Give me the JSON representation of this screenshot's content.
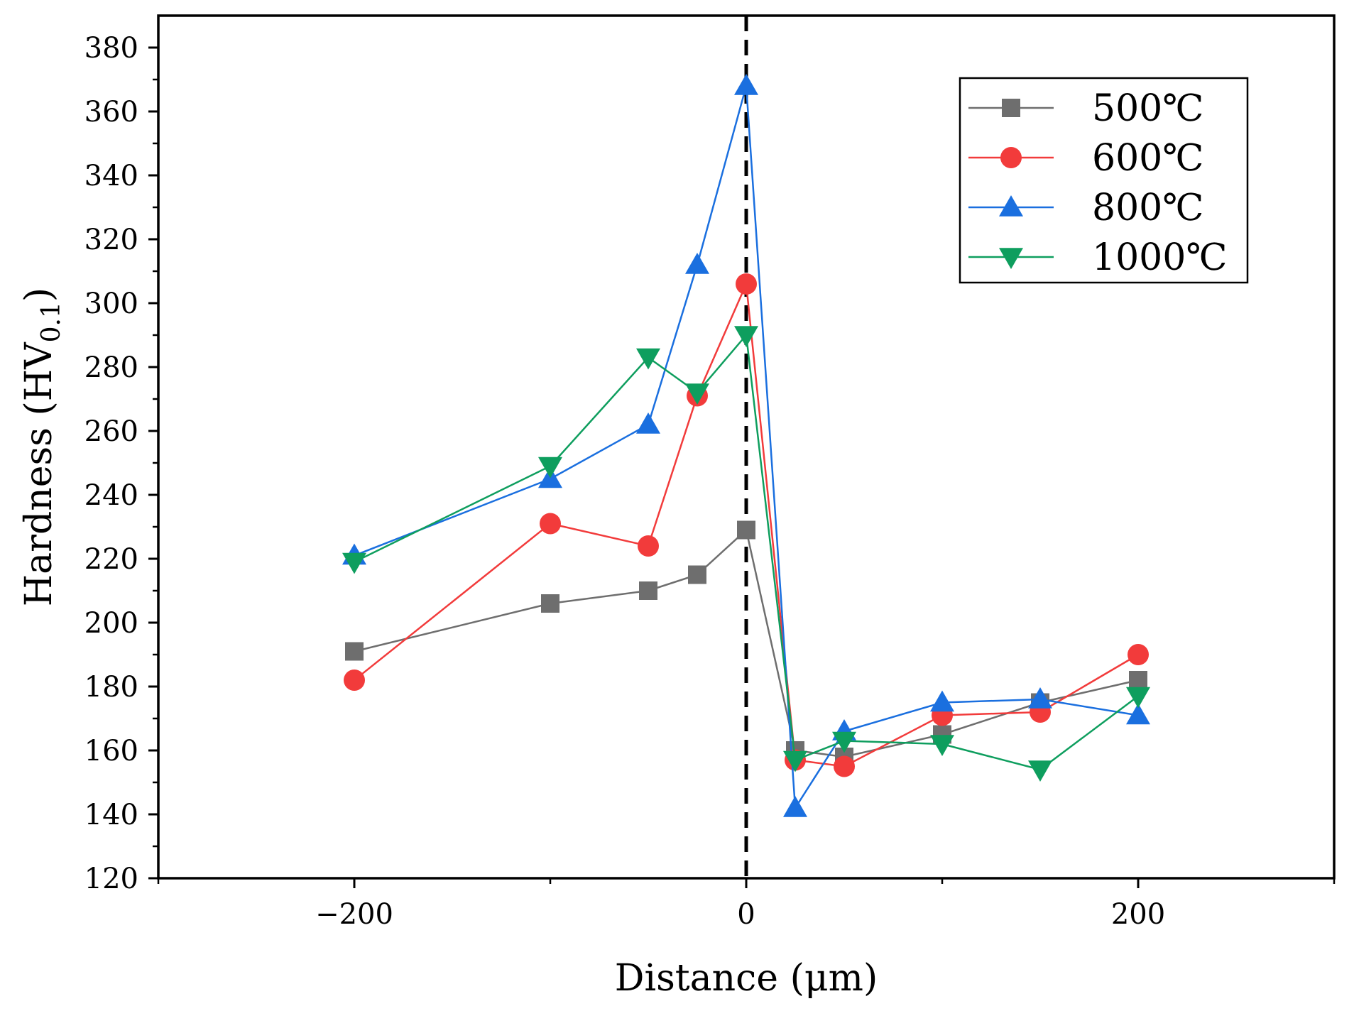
{
  "chart_data": {
    "type": "line",
    "title": "",
    "xlabel": "Distance (μm)",
    "ylabel_main": "Hardness (HV",
    "ylabel_sub": "0.1",
    "ylabel_close": ")",
    "xlim": [
      -300,
      300
    ],
    "ylim": [
      120,
      390
    ],
    "xticks": [
      -200,
      0,
      200
    ],
    "xtick_labels": [
      "−200",
      "0",
      "200"
    ],
    "yticks": [
      120,
      140,
      160,
      180,
      200,
      220,
      240,
      260,
      280,
      300,
      320,
      340,
      360,
      380
    ],
    "ytick_labels": [
      "120",
      "140",
      "160",
      "180",
      "200",
      "220",
      "240",
      "260",
      "280",
      "300",
      "320",
      "340",
      "360",
      "380"
    ],
    "reference_line_x": 0,
    "legend_position": "top-right",
    "x": [
      -200,
      -100,
      -50,
      -25,
      0,
      25,
      50,
      100,
      150,
      200
    ],
    "series": [
      {
        "name": "500℃",
        "marker": "square",
        "color": "#6e6e6e",
        "values": [
          191,
          206,
          210,
          215,
          229,
          160,
          158,
          165,
          175,
          182
        ]
      },
      {
        "name": "600℃",
        "marker": "circle",
        "color": "#f23b3b",
        "values": [
          182,
          231,
          224,
          271,
          306,
          157,
          155,
          171,
          172,
          190
        ]
      },
      {
        "name": "800℃",
        "marker": "triangle-up",
        "color": "#1a6fdf",
        "values": [
          221,
          245,
          262,
          312,
          368,
          142,
          166,
          175,
          176,
          171
        ]
      },
      {
        "name": "1000℃",
        "marker": "triangle-down",
        "color": "#0e9e5e",
        "values": [
          219,
          249,
          283,
          272,
          290,
          157,
          163,
          162,
          154,
          177
        ]
      }
    ]
  }
}
